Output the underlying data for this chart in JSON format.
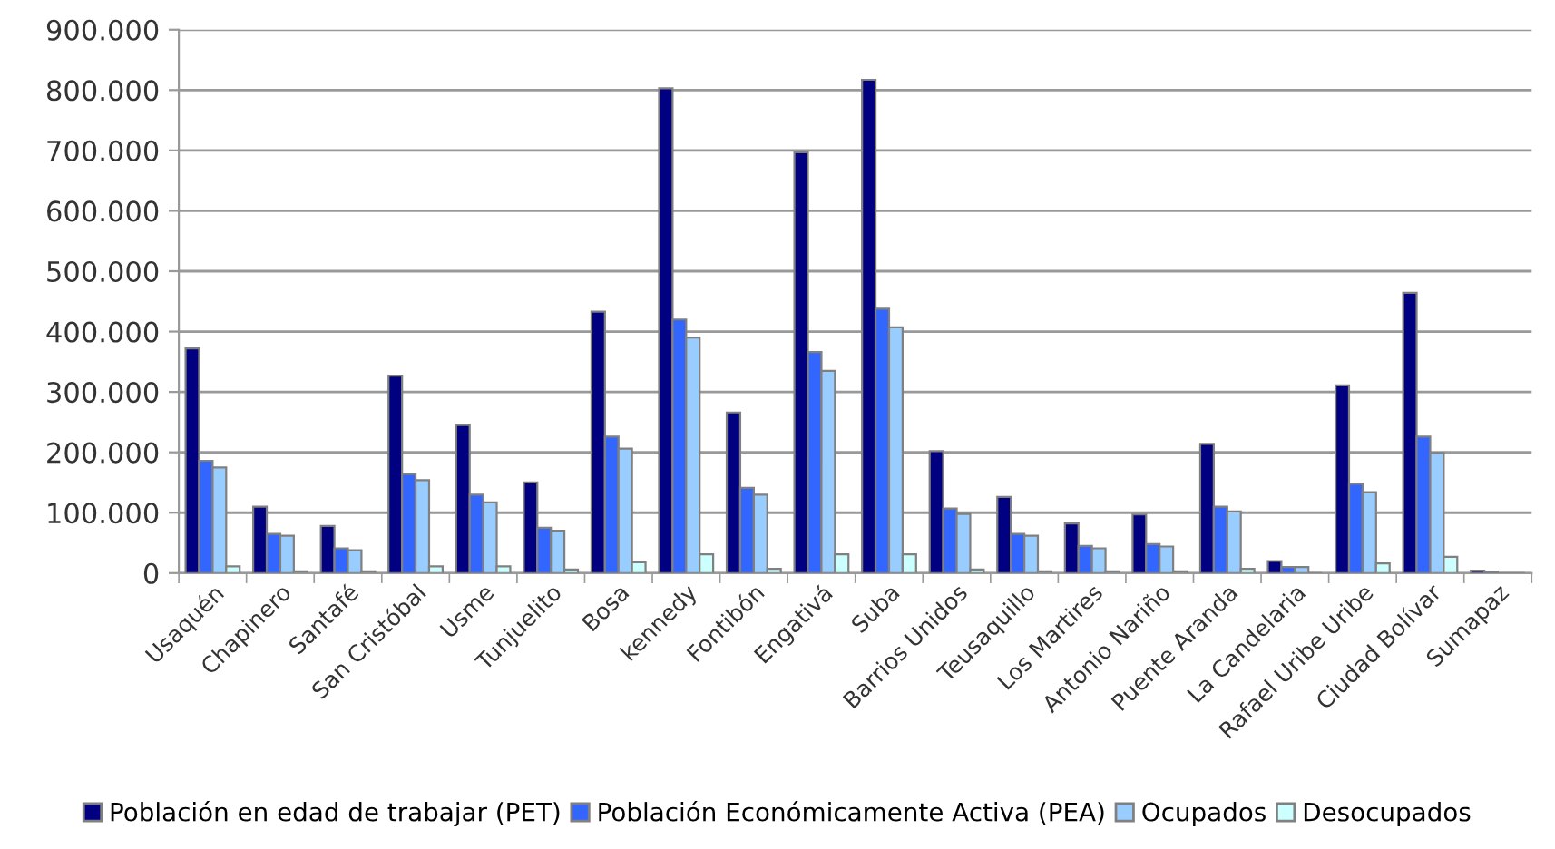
{
  "chart_data": {
    "type": "bar",
    "categories": [
      "Usaquén",
      "Chapinero",
      "Santafé",
      "San Cristóbal",
      "Usme",
      "Tunjuelito",
      "Bosa",
      "kennedy",
      "Fontibón",
      "Engativá",
      "Suba",
      "Barrios Unidos",
      "Teusaquillo",
      "Los Martires",
      "Antonio Nariño",
      "Puente Aranda",
      "La Candelaria",
      "Rafael Uribe Uribe",
      "Ciudad Bolívar",
      "Sumapaz"
    ],
    "series": [
      {
        "name": "Población en edad de trabajar (PET)",
        "color": "#000080",
        "values": [
          372000,
          110000,
          78000,
          327000,
          245000,
          150000,
          433000,
          803000,
          266000,
          697000,
          817000,
          202000,
          126000,
          82000,
          97000,
          214000,
          20000,
          311000,
          464000,
          4000
        ]
      },
      {
        "name": "Población Económicamente Activa (PEA)",
        "color": "#3366ff",
        "values": [
          186000,
          65000,
          41000,
          164000,
          130000,
          75000,
          226000,
          420000,
          141000,
          366000,
          438000,
          107000,
          65000,
          45000,
          48000,
          110000,
          10000,
          148000,
          226000,
          2000
        ]
      },
      {
        "name": "Ocupados",
        "color": "#99ccff",
        "values": [
          175000,
          62000,
          38000,
          154000,
          117000,
          70000,
          206000,
          390000,
          130000,
          335000,
          407000,
          98000,
          62000,
          41000,
          44000,
          102000,
          10000,
          134000,
          199000,
          null
        ]
      },
      {
        "name": "Desocupados",
        "color": "#ccffff",
        "values": [
          11000,
          3000,
          3000,
          11000,
          11000,
          6000,
          18000,
          31000,
          7000,
          31000,
          31000,
          6000,
          3000,
          3000,
          3000,
          7000,
          null,
          16000,
          27000,
          null
        ]
      }
    ],
    "ylim": [
      0,
      900000
    ],
    "yticks": [
      {
        "value": 0,
        "label": "0"
      },
      {
        "value": 100000,
        "label": "100.000"
      },
      {
        "value": 200000,
        "label": "200.000"
      },
      {
        "value": 300000,
        "label": "300.000"
      },
      {
        "value": 400000,
        "label": "400.000"
      },
      {
        "value": 500000,
        "label": "500.000"
      },
      {
        "value": 600000,
        "label": "600.000"
      },
      {
        "value": 700000,
        "label": "700.000"
      },
      {
        "value": 800000,
        "label": "800.000"
      },
      {
        "value": 900000,
        "label": "900.000"
      }
    ],
    "grid": "y",
    "legend": "bottom"
  }
}
